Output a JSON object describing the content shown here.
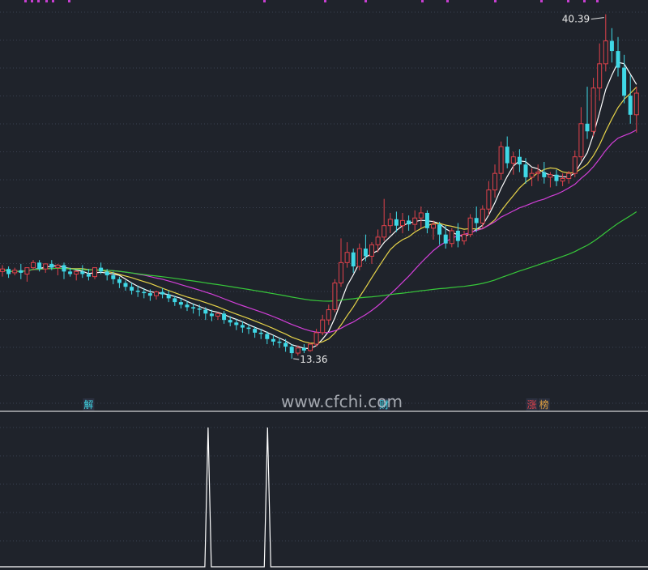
{
  "colors": {
    "background": "#1f232b",
    "up": "#e0424b",
    "down": "#3fd8e6",
    "ma_white": "#ffffff",
    "ma_yellow": "#e7d44a",
    "ma_magenta": "#d23fd8",
    "ma_green": "#37c83a",
    "divider": "#ffffff",
    "marker_top": "#c63fd0"
  },
  "chart_data": [
    {
      "type": "candlestick",
      "title": "",
      "y_range": [
        10.5,
        41.0
      ],
      "high_label": "40.39",
      "low_label": "13.36",
      "event_markers": [
        {
          "label": "解",
          "candle_index": 14,
          "color": "#3fd8e6"
        },
        {
          "label": "财",
          "candle_index": 62,
          "color": "#3fd8e6"
        },
        {
          "label": "涨",
          "candle_index": 86,
          "color": "#e0424b"
        },
        {
          "label": "榜",
          "candle_index": 88,
          "color": "#e0a040"
        }
      ],
      "candles": [
        [
          20.2,
          20.7,
          20.4,
          19.8
        ],
        [
          20.4,
          20.6,
          20.0,
          19.7
        ],
        [
          20.1,
          20.5,
          20.3,
          19.9
        ],
        [
          20.3,
          20.8,
          20.1,
          19.6
        ],
        [
          20.0,
          20.4,
          20.5,
          19.4
        ],
        [
          20.5,
          21.1,
          20.9,
          20.3
        ],
        [
          20.9,
          21.1,
          20.4,
          20.2
        ],
        [
          20.4,
          20.6,
          20.8,
          20.1
        ],
        [
          20.8,
          21.1,
          20.5,
          20.3
        ],
        [
          20.5,
          20.8,
          20.7,
          19.9
        ],
        [
          20.7,
          20.9,
          20.2,
          19.6
        ],
        [
          20.2,
          20.5,
          20.0,
          19.8
        ],
        [
          20.0,
          20.3,
          20.2,
          19.5
        ],
        [
          20.2,
          20.7,
          20.0,
          19.7
        ],
        [
          20.0,
          20.4,
          19.8,
          19.5
        ],
        [
          19.8,
          20.2,
          20.5,
          19.6
        ],
        [
          20.5,
          20.9,
          20.2,
          20.0
        ],
        [
          20.2,
          20.4,
          19.9,
          19.5
        ],
        [
          19.9,
          20.2,
          19.6,
          19.2
        ],
        [
          19.6,
          19.8,
          19.3,
          18.9
        ],
        [
          19.3,
          19.5,
          19.0,
          18.7
        ],
        [
          19.0,
          19.3,
          18.7,
          18.4
        ],
        [
          18.7,
          19.1,
          18.6,
          18.2
        ],
        [
          18.6,
          18.9,
          18.5,
          18.1
        ],
        [
          18.5,
          18.8,
          18.3,
          17.9
        ],
        [
          18.3,
          18.7,
          18.6,
          18.0
        ],
        [
          18.6,
          18.9,
          18.4,
          18.1
        ],
        [
          18.4,
          18.7,
          18.1,
          17.8
        ],
        [
          18.1,
          18.3,
          17.8,
          17.5
        ],
        [
          17.8,
          18.1,
          17.6,
          17.3
        ],
        [
          17.6,
          17.9,
          17.4,
          17.1
        ],
        [
          17.4,
          17.7,
          17.3,
          16.9
        ],
        [
          17.3,
          17.6,
          17.2,
          16.7
        ],
        [
          17.2,
          17.4,
          16.9,
          16.4
        ],
        [
          16.9,
          17.2,
          16.7,
          16.3
        ],
        [
          16.7,
          17.0,
          16.9,
          16.4
        ],
        [
          16.9,
          17.1,
          16.4,
          16.1
        ],
        [
          16.4,
          16.7,
          16.2,
          15.9
        ],
        [
          16.2,
          16.5,
          16.0,
          15.6
        ],
        [
          16.0,
          16.3,
          15.8,
          15.4
        ],
        [
          15.8,
          16.1,
          15.7,
          15.3
        ],
        [
          15.7,
          15.9,
          15.4,
          15.0
        ],
        [
          15.4,
          15.7,
          15.3,
          14.9
        ],
        [
          15.3,
          15.5,
          14.9,
          14.5
        ],
        [
          14.9,
          15.2,
          14.7,
          14.4
        ],
        [
          14.7,
          15.0,
          14.6,
          14.2
        ],
        [
          14.6,
          14.9,
          14.3,
          13.9
        ],
        [
          14.3,
          14.5,
          13.8,
          13.36
        ],
        [
          13.8,
          14.4,
          14.2,
          13.6
        ],
        [
          14.2,
          14.5,
          14.0,
          13.8
        ],
        [
          14.0,
          14.6,
          14.5,
          13.9
        ],
        [
          14.5,
          15.7,
          15.4,
          14.3
        ],
        [
          15.4,
          16.8,
          16.4,
          15.2
        ],
        [
          16.4,
          17.6,
          17.2,
          16.0
        ],
        [
          17.2,
          19.6,
          19.3,
          17.0
        ],
        [
          19.3,
          22.8,
          20.9,
          19.0
        ],
        [
          20.9,
          22.5,
          21.7,
          20.5
        ],
        [
          21.7,
          22.0,
          20.6,
          20.1
        ],
        [
          20.6,
          22.4,
          22.0,
          20.3
        ],
        [
          22.0,
          23.1,
          21.4,
          21.0
        ],
        [
          21.4,
          22.5,
          22.3,
          20.8
        ],
        [
          22.3,
          23.5,
          22.9,
          21.7
        ],
        [
          22.9,
          25.9,
          23.8,
          22.6
        ],
        [
          23.8,
          24.8,
          24.3,
          23.2
        ],
        [
          24.3,
          24.9,
          23.8,
          23.3
        ],
        [
          23.8,
          24.8,
          24.2,
          23.2
        ],
        [
          24.2,
          24.6,
          23.9,
          23.4
        ],
        [
          23.9,
          25.0,
          24.4,
          23.4
        ],
        [
          24.4,
          25.3,
          24.8,
          23.6
        ],
        [
          24.8,
          25.0,
          23.6,
          23.2
        ],
        [
          23.6,
          24.2,
          23.9,
          22.7
        ],
        [
          23.9,
          24.1,
          23.1,
          22.3
        ],
        [
          23.1,
          23.8,
          22.4,
          22.0
        ],
        [
          22.4,
          23.6,
          23.4,
          22.1
        ],
        [
          23.4,
          24.0,
          22.6,
          22.1
        ],
        [
          22.6,
          23.4,
          23.1,
          22.3
        ],
        [
          23.1,
          24.7,
          24.4,
          22.9
        ],
        [
          24.4,
          25.3,
          24.0,
          23.3
        ],
        [
          24.0,
          25.4,
          25.1,
          23.6
        ],
        [
          25.1,
          27.3,
          26.6,
          24.6
        ],
        [
          26.6,
          28.6,
          27.9,
          26.0
        ],
        [
          27.9,
          30.4,
          30.0,
          27.4
        ],
        [
          30.0,
          30.8,
          28.7,
          28.3
        ],
        [
          28.7,
          29.6,
          29.2,
          27.8
        ],
        [
          29.2,
          29.8,
          28.6,
          28.0
        ],
        [
          28.6,
          29.1,
          27.6,
          27.1
        ],
        [
          27.6,
          28.3,
          27.9,
          26.9
        ],
        [
          27.9,
          28.6,
          28.0,
          27.3
        ],
        [
          28.0,
          28.8,
          27.6,
          27.1
        ],
        [
          27.6,
          28.0,
          27.8,
          26.8
        ],
        [
          27.8,
          28.2,
          27.3,
          26.9
        ],
        [
          27.3,
          27.9,
          27.5,
          26.9
        ],
        [
          27.5,
          28.1,
          27.9,
          27.1
        ],
        [
          27.9,
          29.7,
          29.2,
          27.6
        ],
        [
          29.2,
          33.1,
          31.8,
          28.9
        ],
        [
          31.8,
          34.7,
          31.2,
          30.6
        ],
        [
          31.2,
          35.4,
          34.6,
          30.8
        ],
        [
          34.6,
          38.1,
          36.5,
          33.6
        ],
        [
          36.5,
          40.39,
          38.3,
          35.9
        ],
        [
          38.3,
          39.3,
          37.5,
          36.6
        ],
        [
          37.5,
          38.6,
          36.2,
          35.5
        ],
        [
          36.2,
          37.2,
          34.0,
          33.4
        ],
        [
          34.0,
          35.6,
          32.5,
          31.8
        ],
        [
          32.5,
          34.7,
          34.2,
          31.1
        ]
      ],
      "moving_averages": [
        {
          "period": 5,
          "color": "#ffffff"
        },
        {
          "period": 10,
          "color": "#e7d44a"
        },
        {
          "period": 20,
          "color": "#d23fd8"
        },
        {
          "period": 60,
          "color": "#37c83a"
        }
      ]
    },
    {
      "type": "line",
      "title": "",
      "y_range": [
        0,
        1
      ],
      "values": [
        0,
        0,
        0,
        0,
        0,
        0,
        0,
        0,
        0,
        0,
        0,
        0,
        0,
        0,
        0,
        0,
        0,
        0,
        0,
        0,
        0,
        0,
        0,
        0,
        0,
        0,
        0,
        0,
        0,
        0,
        0,
        0,
        0,
        0,
        0,
        1,
        0,
        0,
        0,
        0,
        0,
        0,
        0,
        0,
        0,
        1,
        0,
        0,
        0,
        0,
        0,
        0,
        0,
        0,
        0,
        0,
        0,
        0,
        0,
        0,
        0,
        0,
        0,
        0,
        0,
        0,
        0,
        0,
        0,
        0,
        0,
        0,
        0,
        0,
        0,
        0,
        0,
        0,
        0,
        0,
        0,
        0,
        0,
        0,
        0,
        0,
        0,
        0,
        0,
        0,
        0,
        0,
        0,
        0,
        0,
        0,
        0,
        0,
        0,
        0,
        0,
        0,
        0,
        0,
        0,
        0,
        0,
        0,
        0,
        0
      ],
      "color": "#ffffff"
    }
  ],
  "watermark": "www.cfchi.com"
}
